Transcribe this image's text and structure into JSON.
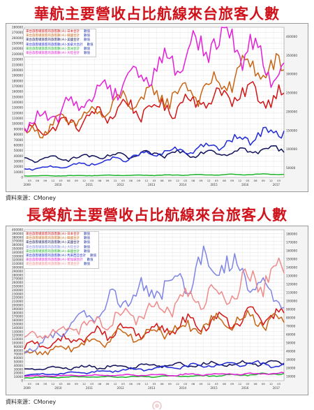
{
  "charts": [
    {
      "title": "華航主要營收占比航線來台旅客人數",
      "source": "資料來源：CMoney",
      "legend": [
        {
          "label": "來台旅客總旅客的旅客數(Ａ)-日本合計",
          "unit": "數值",
          "color": "#d41414"
        },
        {
          "label": "來台旅客總旅客的旅客數(Ａ)-韓國合計",
          "unit": "數值",
          "color": "#c86414"
        },
        {
          "label": "來台旅客總旅客的旅客數(Ａ)-美國合計",
          "unit": "數值",
          "color": "#10105a"
        },
        {
          "label": "來台旅客總旅客的旅客數(Ａ)-加拿大合計",
          "unit": "數值",
          "color": "#1f2ad8"
        },
        {
          "label": "來台旅客總旅客的旅客數(Ａ)-澳洲合計",
          "unit": "數值",
          "color": "#1db32a"
        },
        {
          "label": "來台旅客總旅客的旅客數(Ａ)-大陸合計",
          "unit": "數值",
          "color": "#e41fd8"
        }
      ],
      "left_ticks": [
        "280000",
        "270000",
        "260000",
        "250000",
        "240000",
        "230000",
        "220000",
        "210000",
        "200000",
        "190000",
        "180000",
        "170000",
        "160000",
        "150000",
        "140000",
        "130000",
        "120000",
        "110000",
        "100000",
        "90000",
        "80000",
        "70000",
        "60000",
        "50000",
        "40000",
        "30000",
        "20000",
        "10000",
        "0"
      ],
      "right_ticks": [
        "400000",
        "350000",
        "300000",
        "250000",
        "200000",
        "150000",
        "100000",
        "50000"
      ],
      "year_labels": [
        "2009",
        "2010",
        "2011",
        "2012",
        "2013",
        "2014",
        "2015",
        "2016",
        "2017"
      ]
    },
    {
      "title": "長榮航主要營收占比航線來台旅客人數",
      "source": "資料來源：CMoney",
      "legend": [
        {
          "label": "來台旅客總旅客的旅客數(Ａ)-日本合計",
          "unit": "數值",
          "color": "#d41414"
        },
        {
          "label": "來台旅客總旅客的旅客數(Ａ)-韓國合計",
          "unit": "數值",
          "color": "#c86414"
        },
        {
          "label": "來台旅客總旅客的旅客數(Ａ)-美國合計",
          "unit": "數值",
          "color": "#10105a"
        },
        {
          "label": "來台旅客總旅客的旅客數(Ａ)-大陸合計",
          "unit": "數值",
          "color": "#7e84e6"
        },
        {
          "label": "來台旅客總旅客的旅客數(Ａ)-泰國合計",
          "unit": "數值",
          "color": "#1db32a"
        },
        {
          "label": "來台旅客總旅客的旅客數(Ａ)-馬來西亞合計",
          "unit": "數值",
          "color": "#1f2ad8"
        },
        {
          "label": "來台旅客總旅客的旅客數(Ａ)-新加坡合計",
          "unit": "數值",
          "color": "#e41fd8"
        },
        {
          "label": "來台旅客總旅客的旅客數(Ａ)-港澳合計",
          "unit": "數值",
          "color": "#f08a8a"
        }
      ],
      "left_ticks": [
        "400000",
        "390000",
        "380000",
        "370000",
        "360000",
        "350000",
        "340000",
        "330000",
        "320000",
        "310000",
        "300000",
        "290000",
        "280000",
        "270000",
        "260000",
        "250000",
        "240000",
        "230000",
        "220000",
        "210000",
        "200000",
        "190000",
        "180000",
        "170000",
        "160000",
        "150000",
        "140000",
        "130000",
        "120000",
        "110000",
        "100000",
        "90000",
        "80000",
        "70000",
        "60000",
        "50000",
        "40000",
        "30000",
        "20000",
        "10000",
        "0"
      ],
      "right_ticks": [
        "180000",
        "170000",
        "160000",
        "150000",
        "140000",
        "130000",
        "120000",
        "110000",
        "100000",
        "90000",
        "80000",
        "70000",
        "60000",
        "50000",
        "40000",
        "30000",
        "20000",
        "10000"
      ],
      "year_labels": [
        "2009",
        "2010",
        "2011",
        "2012",
        "2013",
        "2014",
        "2015",
        "2016",
        "2017"
      ]
    }
  ],
  "chart_data": [
    {
      "type": "line",
      "title": "華航主要營收占比航線來台旅客人數",
      "x": [
        "2009",
        "2010",
        "2011",
        "2012",
        "2013",
        "2014",
        "2015",
        "2016",
        "2017"
      ],
      "ylim": [
        0,
        280000
      ],
      "ylim_right": [
        0,
        400000
      ],
      "grid": true,
      "legend_position": "top-left",
      "series": [
        {
          "name": "來台旅客總旅客的旅客數(Ａ)-日本合計",
          "color": "#d41414",
          "values": [
            85000,
            95000,
            110000,
            130000,
            125000,
            140000,
            150000,
            155000,
            150000
          ]
        },
        {
          "name": "來台旅客總旅客的旅客數(Ａ)-韓國合計",
          "color": "#c86414",
          "values": [
            80000,
            100000,
            115000,
            140000,
            150000,
            160000,
            170000,
            210000,
            190000
          ]
        },
        {
          "name": "來台旅客總旅客的旅客數(Ａ)-美國合計",
          "color": "#10105a",
          "values": [
            32000,
            36000,
            38000,
            40000,
            43000,
            45000,
            47000,
            50000,
            53000
          ]
        },
        {
          "name": "來台旅客總旅客的旅客數(Ａ)-加拿大合計",
          "color": "#1f2ad8",
          "values": [
            15000,
            20000,
            25000,
            35000,
            45000,
            50000,
            60000,
            75000,
            90000
          ]
        },
        {
          "name": "來台旅客總旅客的旅客數(Ａ)-澳洲合計",
          "color": "#1db32a",
          "values": [
            3000,
            3000,
            3500,
            4000,
            4000,
            4500,
            5000,
            5500,
            6000
          ]
        },
        {
          "name": "來台旅客總旅客的旅客數(Ａ)-大陸合計",
          "color": "#e41fd8",
          "values": [
            95000,
            120000,
            150000,
            180000,
            200000,
            230000,
            260000,
            240000,
            185000
          ]
        }
      ]
    },
    {
      "type": "line",
      "title": "長榮航主要營收占比航線來台旅客人數",
      "x": [
        "2009",
        "2010",
        "2011",
        "2012",
        "2013",
        "2014",
        "2015",
        "2016",
        "2017"
      ],
      "ylim": [
        0,
        400000
      ],
      "ylim_right": [
        0,
        180000
      ],
      "grid": true,
      "legend_position": "top-left",
      "series": [
        {
          "name": "來台旅客總旅客的旅客數(Ａ)-日本合計",
          "color": "#d41414",
          "values": [
            90000,
            100000,
            120000,
            135000,
            130000,
            150000,
            160000,
            165000,
            170000
          ]
        },
        {
          "name": "來台旅客總旅客的旅客數(Ａ)-韓國合計",
          "color": "#c86414",
          "values": [
            70000,
            85000,
            100000,
            120000,
            130000,
            140000,
            155000,
            165000,
            145000
          ]
        },
        {
          "name": "來台旅客總旅客的旅客數(Ａ)-美國合計",
          "color": "#10105a",
          "values": [
            30000,
            34000,
            36000,
            38000,
            40000,
            42000,
            44000,
            46000,
            48000
          ]
        },
        {
          "name": "來台旅客總旅客的旅客數(Ａ)-大陸合計",
          "color": "#7e84e6",
          "values": [
            80000,
            120000,
            170000,
            220000,
            240000,
            280000,
            320000,
            270000,
            200000
          ]
        },
        {
          "name": "來台旅客總旅客的旅客數(Ａ)-泰國合計",
          "color": "#1db32a",
          "values": [
            8000,
            9000,
            10000,
            10000,
            11000,
            12000,
            14000,
            16000,
            20000
          ]
        },
        {
          "name": "來台旅客總旅客的旅客數(Ａ)-馬來西亞合計",
          "color": "#1f2ad8",
          "values": [
            15000,
            18000,
            22000,
            28000,
            32000,
            38000,
            42000,
            46000,
            40000
          ]
        },
        {
          "name": "來台旅客總旅客的旅客數(Ａ)-新加坡合計",
          "color": "#e41fd8",
          "values": [
            12000,
            13000,
            14000,
            15000,
            15000,
            16000,
            17000,
            18000,
            19000
          ]
        },
        {
          "name": "來台旅客總旅客的旅客數(Ａ)-港澳合計",
          "color": "#f08a8a",
          "values": [
            110000,
            130000,
            150000,
            170000,
            190000,
            210000,
            230000,
            260000,
            300000
          ]
        }
      ]
    }
  ]
}
